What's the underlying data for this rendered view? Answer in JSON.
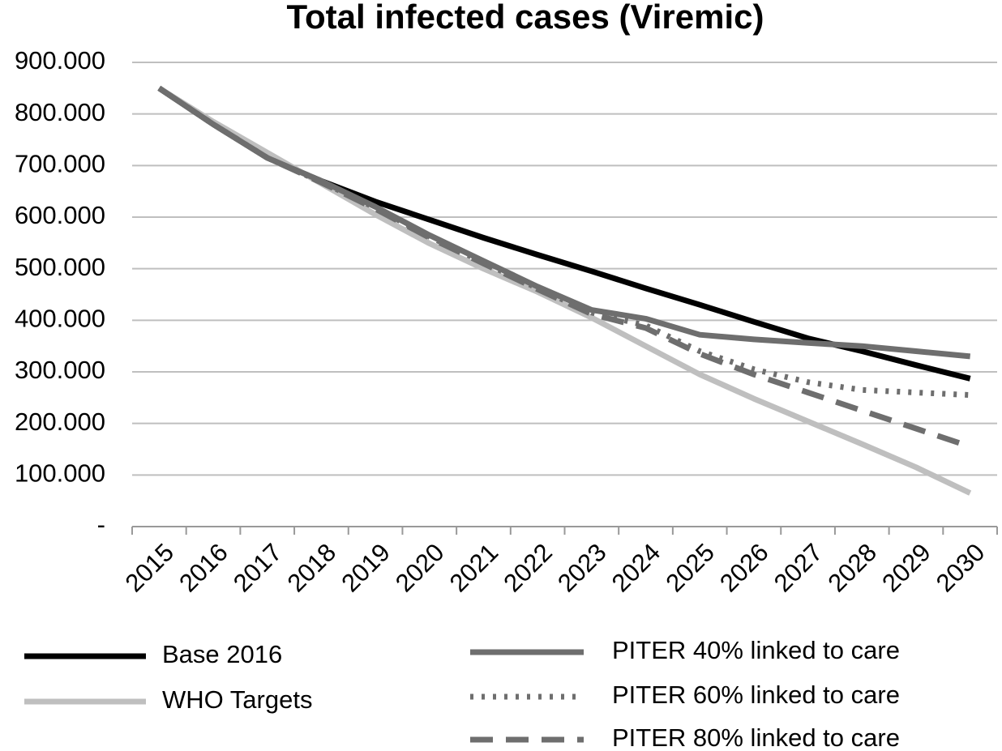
{
  "chart_data": {
    "type": "line",
    "title": "Total infected cases (Viremic)",
    "categories": [
      "2015",
      "2016",
      "2017",
      "2018",
      "2019",
      "2020",
      "2021",
      "2022",
      "2023",
      "2024",
      "2025",
      "2026",
      "2027",
      "2028",
      "2029",
      "2030"
    ],
    "series": [
      {
        "name": "Base 2016",
        "color": "#000000",
        "dash": "solid",
        "values": [
          850000,
          780000,
          715000,
          670000,
          630000,
          595000,
          560000,
          527000,
          495000,
          462000,
          430000,
          397000,
          365000,
          340000,
          313000,
          287000
        ]
      },
      {
        "name": "WHO Targets",
        "color": "#bfbfbf",
        "dash": "solid",
        "values": [
          850000,
          785000,
          725000,
          665000,
          605000,
          549000,
          500000,
          455000,
          405000,
          350000,
          295000,
          248000,
          204000,
          160000,
          115000,
          65000
        ]
      },
      {
        "name": "PITER 40% linked to care",
        "color": "#6e6e6e",
        "dash": "solid",
        "values": [
          850000,
          780000,
          715000,
          670000,
          620000,
          565000,
          515000,
          465000,
          420000,
          403000,
          372000,
          363000,
          356000,
          350000,
          340000,
          330000
        ]
      },
      {
        "name": "PITER 60% linked to care",
        "color": "#6e6e6e",
        "dash": "dotted",
        "values": [
          850000,
          780000,
          715000,
          668000,
          618000,
          562000,
          512000,
          462000,
          415000,
          390000,
          340000,
          305000,
          280000,
          265000,
          260000,
          255000
        ]
      },
      {
        "name": "PITER 80% linked to care",
        "color": "#6e6e6e",
        "dash": "dashed",
        "values": [
          850000,
          780000,
          715000,
          667000,
          616000,
          560000,
          510000,
          460000,
          412000,
          385000,
          335000,
          295000,
          260000,
          225000,
          190000,
          155000
        ]
      }
    ],
    "ylim": [
      0,
      900000
    ],
    "yticks": [
      {
        "value": 0,
        "label": "-"
      },
      {
        "value": 100000,
        "label": "100.000"
      },
      {
        "value": 200000,
        "label": "200.000"
      },
      {
        "value": 300000,
        "label": "300.000"
      },
      {
        "value": 400000,
        "label": "400.000"
      },
      {
        "value": 500000,
        "label": "500.000"
      },
      {
        "value": 600000,
        "label": "600.000"
      },
      {
        "value": 700000,
        "label": "700.000"
      },
      {
        "value": 800000,
        "label": "800.000"
      },
      {
        "value": 900000,
        "label": "900.000"
      }
    ],
    "grid": true
  }
}
